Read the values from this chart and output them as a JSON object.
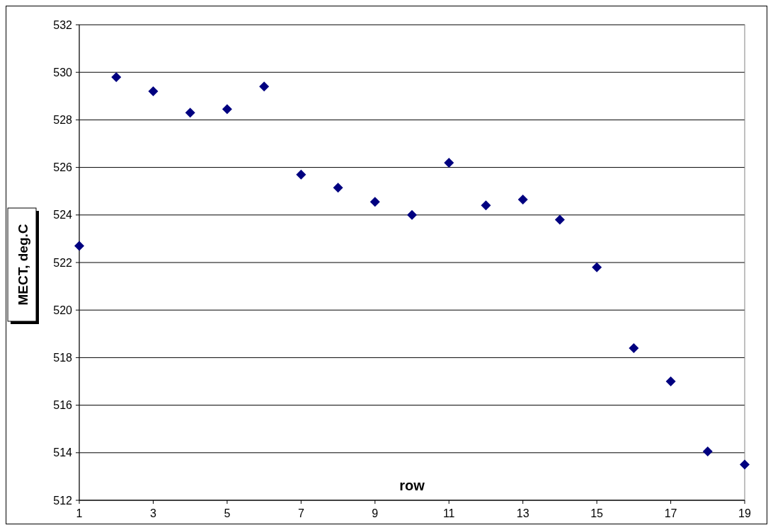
{
  "chart_data": {
    "type": "scatter",
    "xlabel": "row",
    "ylabel": "MECT, deg.C",
    "x": [
      1,
      2,
      3,
      4,
      5,
      6,
      7,
      8,
      9,
      10,
      11,
      12,
      13,
      14,
      15,
      16,
      17,
      18,
      19
    ],
    "series": [
      {
        "color": "#000080",
        "values": [
          522.7,
          529.8,
          529.2,
          528.3,
          528.45,
          529.4,
          525.7,
          525.15,
          524.55,
          524.0,
          526.2,
          524.4,
          524.65,
          523.8,
          521.8,
          518.4,
          517.0,
          514.05,
          513.5
        ]
      }
    ],
    "xlim": [
      1,
      19
    ],
    "xticks": [
      1,
      3,
      5,
      7,
      9,
      11,
      13,
      15,
      17,
      19
    ],
    "ylim": [
      512,
      532
    ],
    "yticks": [
      512,
      514,
      516,
      518,
      520,
      522,
      524,
      526,
      528,
      530,
      532
    ],
    "grid": "y",
    "marker": "diamond"
  }
}
